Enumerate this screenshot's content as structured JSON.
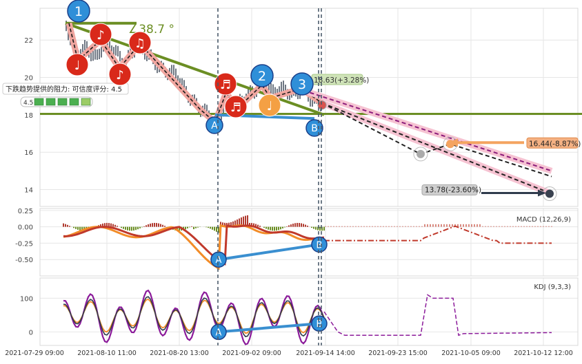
{
  "chart_data": {
    "type": "line",
    "title": "",
    "x_ticks": [
      "2021-07-29 09:00",
      "2021-08-10 11:00",
      "2021-08-20 13:00",
      "2021-09-02 09:00",
      "2021-09-14 14:00",
      "2021-09-23 15:00",
      "2021-10-05 09:00",
      "2021-10-12 12:00"
    ],
    "price_panel": {
      "ylim": [
        13.1,
        23.7
      ],
      "yticks": [
        14,
        16,
        18,
        20,
        22
      ],
      "trend_line_color": "#6b8e23",
      "angle_label": "∠38.7 °",
      "support_level": 18.05,
      "resistance_label": "下跌趋势提供的阻力: 可信度评分: 4.5",
      "score": "4.5",
      "target_upper": {
        "value": 16.44,
        "label": "16.44(-8.87%)"
      },
      "target_lower": {
        "value": 13.78,
        "label": "13.78(-23.60%)"
      },
      "last_price_label": "18.63(+3.28%)",
      "pivots": [
        {
          "label": "1",
          "x": "2021-07-29",
          "y": 22.9
        },
        {
          "label": "2",
          "x": "2021-09-08",
          "y": 19.6
        },
        {
          "label": "3",
          "x": "2021-09-13",
          "y": 19.4
        },
        {
          "label": "A",
          "x": "2021-08-26",
          "y": 17.6
        },
        {
          "label": "B",
          "x": "2021-09-14",
          "y": 17.6
        }
      ]
    },
    "macd_panel": {
      "label": "MACD (12,26,9)",
      "ylim": [
        -0.75,
        0.28
      ],
      "yticks": [
        "0.25",
        "0.00",
        "-0.25",
        "-0.50"
      ],
      "divergence": [
        {
          "label": "A",
          "y": -0.5
        },
        {
          "label": "B",
          "y": -0.27
        }
      ]
    },
    "kdj_panel": {
      "label": "KDJ (9,3,3)",
      "ylim": [
        -40,
        160
      ],
      "yticks": [
        "100",
        "0"
      ],
      "divergence": [
        {
          "label": "A",
          "y": 0
        },
        {
          "label": "B",
          "y": 25
        }
      ]
    }
  }
}
